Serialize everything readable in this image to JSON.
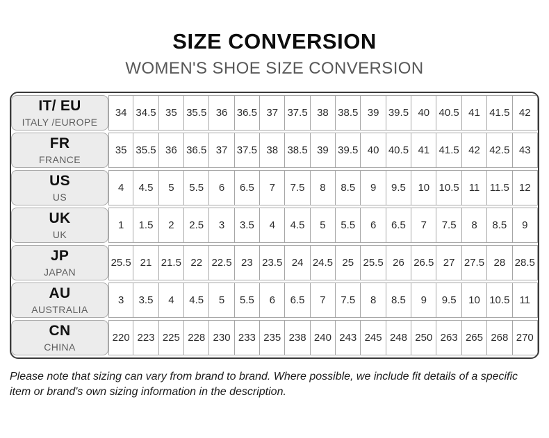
{
  "header": {
    "title": "SIZE CONVERSION",
    "subtitle": "WOMEN'S SHOE SIZE CONVERSION"
  },
  "chart_data": {
    "type": "table",
    "title": "SIZE CONVERSION",
    "subtitle": "WOMEN'S SHOE SIZE CONVERSION",
    "columns_per_row": 17,
    "rows": [
      {
        "code": "IT/ EU",
        "region": "ITALY /EUROPE",
        "values": [
          "34",
          "34.5",
          "35",
          "35.5",
          "36",
          "36.5",
          "37",
          "37.5",
          "38",
          "38.5",
          "39",
          "39.5",
          "40",
          "40.5",
          "41",
          "41.5",
          "42"
        ]
      },
      {
        "code": "FR",
        "region": "FRANCE",
        "values": [
          "35",
          "35.5",
          "36",
          "36.5",
          "37",
          "37.5",
          "38",
          "38.5",
          "39",
          "39.5",
          "40",
          "40.5",
          "41",
          "41.5",
          "42",
          "42.5",
          "43"
        ]
      },
      {
        "code": "US",
        "region": "US",
        "values": [
          "4",
          "4.5",
          "5",
          "5.5",
          "6",
          "6.5",
          "7",
          "7.5",
          "8",
          "8.5",
          "9",
          "9.5",
          "10",
          "10.5",
          "11",
          "11.5",
          "12"
        ]
      },
      {
        "code": "UK",
        "region": "UK",
        "values": [
          "1",
          "1.5",
          "2",
          "2.5",
          "3",
          "3.5",
          "4",
          "4.5",
          "5",
          "5.5",
          "6",
          "6.5",
          "7",
          "7.5",
          "8",
          "8.5",
          "9"
        ]
      },
      {
        "code": "JP",
        "region": "JAPAN",
        "values": [
          "25.5",
          "21",
          "21.5",
          "22",
          "22.5",
          "23",
          "23.5",
          "24",
          "24.5",
          "25",
          "25.5",
          "26",
          "26.5",
          "27",
          "27.5",
          "28",
          "28.5"
        ]
      },
      {
        "code": "AU",
        "region": "AUSTRALIA",
        "values": [
          "3",
          "3.5",
          "4",
          "4.5",
          "5",
          "5.5",
          "6",
          "6.5",
          "7",
          "7.5",
          "8",
          "8.5",
          "9",
          "9.5",
          "10",
          "10.5",
          "11"
        ]
      },
      {
        "code": "CN",
        "region": "CHINA",
        "values": [
          "220",
          "223",
          "225",
          "228",
          "230",
          "233",
          "235",
          "238",
          "240",
          "243",
          "245",
          "248",
          "250",
          "263",
          "265",
          "268",
          "270"
        ]
      }
    ]
  },
  "footnote": "Please note that sizing can vary from brand to brand. Where possible, we include fit details of a specific item or brand's own sizing information in the description.",
  "colors": {
    "outer_border": "#3a3a3a",
    "cell_border": "#a6a6a6",
    "header_cell_fill": "#ececec",
    "title_text": "#0d0d0d",
    "subtitle_text": "#585858",
    "cell_text": "#2d2d2d",
    "region_text": "#5e5e5e"
  }
}
